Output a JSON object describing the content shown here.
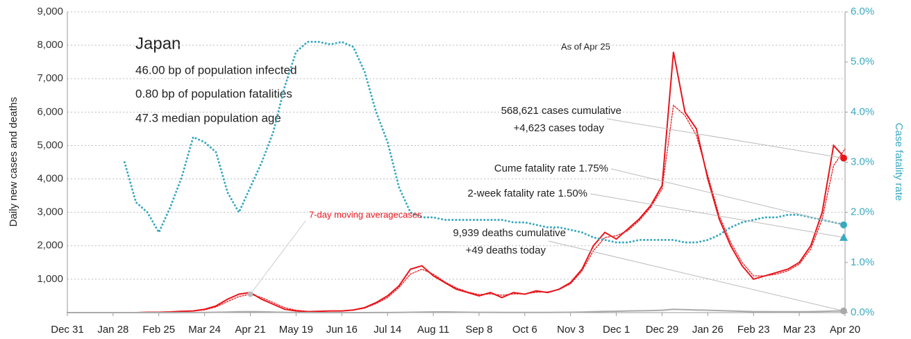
{
  "chart_data": {
    "type": "line",
    "title": "Japan",
    "stats": [
      "46.00 bp of population infected",
      "0.80 bp of population fatalities",
      "47.3 median population age"
    ],
    "as_of": "As of Apr 25",
    "ylabel": "Daily new cases and deaths",
    "y2label": "Case fatality rate",
    "x": [
      0,
      7,
      14,
      21,
      28,
      35,
      42,
      49,
      56,
      63,
      70,
      77,
      84,
      91,
      98,
      105,
      112,
      119,
      126,
      133,
      140,
      147,
      154,
      161,
      168,
      175,
      182,
      189,
      196,
      203,
      210,
      217,
      224,
      231,
      238,
      245,
      252,
      259,
      266,
      273,
      280,
      287,
      294,
      301,
      308,
      315,
      322,
      329,
      336,
      343,
      350,
      357,
      364,
      371,
      378,
      385,
      392,
      399,
      406,
      413,
      420,
      427,
      434,
      441,
      448,
      455,
      462,
      469,
      476
    ],
    "xlim": [
      0,
      476
    ],
    "xticks": [
      {
        "value": 0,
        "label": "Dec 31"
      },
      {
        "value": 28,
        "label": "Jan 28"
      },
      {
        "value": 56,
        "label": "Feb 25"
      },
      {
        "value": 84,
        "label": "Mar 24"
      },
      {
        "value": 112,
        "label": "Apr 21"
      },
      {
        "value": 140,
        "label": "May 19"
      },
      {
        "value": 168,
        "label": "Jun 16"
      },
      {
        "value": 196,
        "label": "Jul 14"
      },
      {
        "value": 224,
        "label": "Aug 11"
      },
      {
        "value": 252,
        "label": "Sep 8"
      },
      {
        "value": 280,
        "label": "Oct 6"
      },
      {
        "value": 308,
        "label": "Nov 3"
      },
      {
        "value": 336,
        "label": "Dec 1"
      },
      {
        "value": 364,
        "label": "Dec 29"
      },
      {
        "value": 392,
        "label": "Jan 26"
      },
      {
        "value": 420,
        "label": "Feb 23"
      },
      {
        "value": 448,
        "label": "Mar 23"
      },
      {
        "value": 476,
        "label": "Apr 20"
      }
    ],
    "ylim": [
      0,
      9000
    ],
    "yticks": [
      {
        "value": 1000,
        "label": "1,000"
      },
      {
        "value": 2000,
        "label": "2,000"
      },
      {
        "value": 3000,
        "label": "3,000"
      },
      {
        "value": 4000,
        "label": "4,000"
      },
      {
        "value": 5000,
        "label": "5,000"
      },
      {
        "value": 6000,
        "label": "6,000"
      },
      {
        "value": 7000,
        "label": "7,000"
      },
      {
        "value": 8000,
        "label": "8,000"
      },
      {
        "value": 9000,
        "label": "9,000"
      }
    ],
    "y2lim": [
      0,
      6
    ],
    "y2ticks": [
      {
        "value": 0,
        "label": "0.0%"
      },
      {
        "value": 1,
        "label": "1.0%"
      },
      {
        "value": 2,
        "label": "2.0%"
      },
      {
        "value": 3,
        "label": "3.0%"
      },
      {
        "value": 4,
        "label": "4.0%"
      },
      {
        "value": 5,
        "label": "5.0%"
      },
      {
        "value": 6,
        "label": "6.0%"
      }
    ],
    "grid": true,
    "series": [
      {
        "name": "cases",
        "color": "#e8141a",
        "style": "solid",
        "values": [
          0,
          0,
          0,
          0,
          0,
          0,
          0,
          10,
          10,
          20,
          40,
          50,
          100,
          200,
          400,
          550,
          600,
          400,
          250,
          100,
          50,
          30,
          40,
          50,
          50,
          80,
          150,
          300,
          500,
          800,
          1300,
          1400,
          1100,
          900,
          700,
          600,
          500,
          600,
          450,
          600,
          550,
          650,
          600,
          700,
          900,
          1300,
          2000,
          2400,
          2200,
          2500,
          2800,
          3200,
          3800,
          7800,
          6000,
          5500,
          4000,
          2800,
          2000,
          1400,
          1000,
          1100,
          1200,
          1300,
          1500,
          2000,
          3000,
          5000,
          4623
        ]
      },
      {
        "name": "7-day moving averagecases",
        "color": "#e8141a",
        "style": "dotted",
        "values": [
          0,
          0,
          0,
          0,
          0,
          0,
          0,
          5,
          10,
          15,
          30,
          45,
          80,
          170,
          330,
          480,
          550,
          450,
          300,
          150,
          70,
          40,
          35,
          45,
          50,
          70,
          130,
          270,
          450,
          750,
          1150,
          1300,
          1150,
          920,
          740,
          620,
          540,
          560,
          520,
          560,
          560,
          610,
          620,
          690,
          860,
          1250,
          1850,
          2250,
          2300,
          2450,
          2750,
          3150,
          3700,
          6200,
          5900,
          5300,
          4100,
          2900,
          2100,
          1500,
          1100,
          1100,
          1150,
          1250,
          1450,
          1900,
          2800,
          4400,
          4900
        ]
      },
      {
        "name": "deaths",
        "color": "#aaaaaa",
        "style": "solid",
        "values": [
          0,
          0,
          0,
          0,
          0,
          0,
          0,
          0,
          0,
          1,
          2,
          3,
          5,
          10,
          15,
          25,
          30,
          25,
          15,
          8,
          3,
          2,
          1,
          1,
          1,
          1,
          1,
          2,
          3,
          5,
          10,
          15,
          20,
          20,
          15,
          10,
          8,
          8,
          7,
          6,
          6,
          6,
          7,
          8,
          10,
          15,
          25,
          35,
          40,
          50,
          55,
          60,
          70,
          100,
          90,
          80,
          70,
          60,
          50,
          40,
          30,
          30,
          25,
          25,
          25,
          30,
          35,
          45,
          49
        ]
      },
      {
        "name": "case fatality rate",
        "color": "#3aa9c0",
        "style": "dotted",
        "axis": "y2",
        "values": [
          null,
          null,
          null,
          null,
          null,
          3.0,
          2.2,
          2.0,
          1.6,
          2.1,
          2.7,
          3.5,
          3.4,
          3.2,
          2.4,
          2.0,
          2.5,
          3.0,
          3.6,
          4.5,
          5.2,
          5.4,
          5.4,
          5.35,
          5.4,
          5.3,
          4.8,
          4.0,
          3.4,
          2.5,
          2.0,
          1.9,
          1.9,
          1.85,
          1.85,
          1.85,
          1.85,
          1.85,
          1.85,
          1.8,
          1.8,
          1.75,
          1.7,
          1.7,
          1.65,
          1.6,
          1.5,
          1.45,
          1.4,
          1.4,
          1.45,
          1.45,
          1.45,
          1.45,
          1.4,
          1.4,
          1.45,
          1.55,
          1.7,
          1.8,
          1.85,
          1.9,
          1.9,
          1.95,
          1.95,
          1.9,
          1.85,
          1.8,
          1.75
        ]
      }
    ],
    "annotations": [
      {
        "label": "568,621 cases cumulative"
      },
      {
        "value": 4623,
        "label": "+4,623 cases today",
        "color": "#e8141a",
        "marker": "circle"
      },
      {
        "value": 1.75,
        "label": "Cume fatality rate 1.75%",
        "color": "#3aa9c0",
        "marker": "circle",
        "axis": "y2"
      },
      {
        "value": 1.5,
        "label": "2-week fatality rate 1.50%",
        "color": "#3aa9c0",
        "marker": "triangle",
        "axis": "y2"
      },
      {
        "label": "9,939 deaths cumulative"
      },
      {
        "value": 49,
        "label": "+49 deaths today",
        "color": "#aaaaaa",
        "marker": "circle"
      }
    ]
  }
}
